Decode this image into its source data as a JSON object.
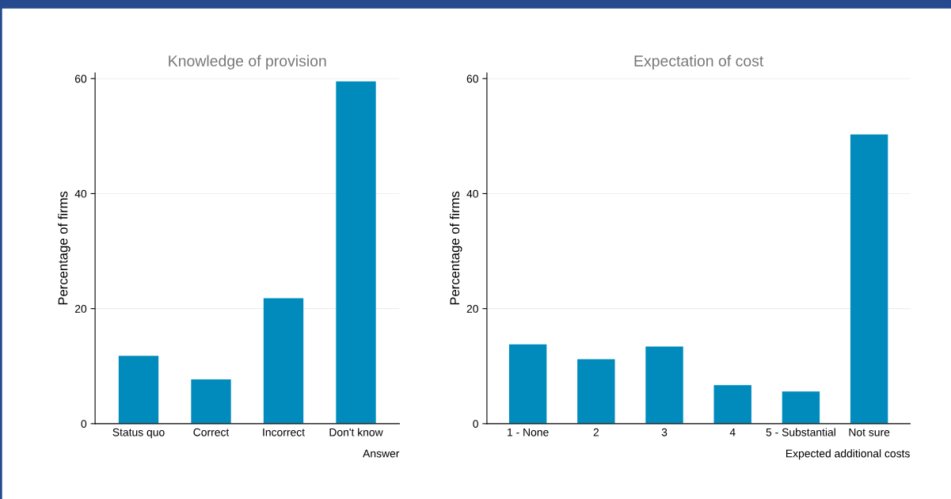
{
  "chart_data": [
    {
      "type": "bar",
      "title": "Knowledge of provision",
      "xlabel": "Answer",
      "ylabel": "Percentage of firms",
      "categories": [
        "Status quo",
        "Correct",
        "Incorrect",
        "Don't know"
      ],
      "values": [
        11.8,
        7.7,
        21.8,
        59.5
      ],
      "color": "#008bbc",
      "ylim": [
        0,
        61
      ],
      "yticks": [
        0,
        20,
        40,
        60
      ],
      "grid": "y"
    },
    {
      "type": "bar",
      "title": "Expectation of cost",
      "xlabel": "Expected additional costs",
      "ylabel": "Percentage of firms",
      "categories": [
        "1 - None",
        "2",
        "3",
        "4",
        "5 - Substantial",
        "Not sure"
      ],
      "values": [
        13.8,
        11.2,
        13.4,
        6.7,
        5.6,
        50.3
      ],
      "color": "#008bbc",
      "ylim": [
        0,
        61
      ],
      "yticks": [
        0,
        20,
        40,
        60
      ],
      "grid": "y"
    }
  ]
}
